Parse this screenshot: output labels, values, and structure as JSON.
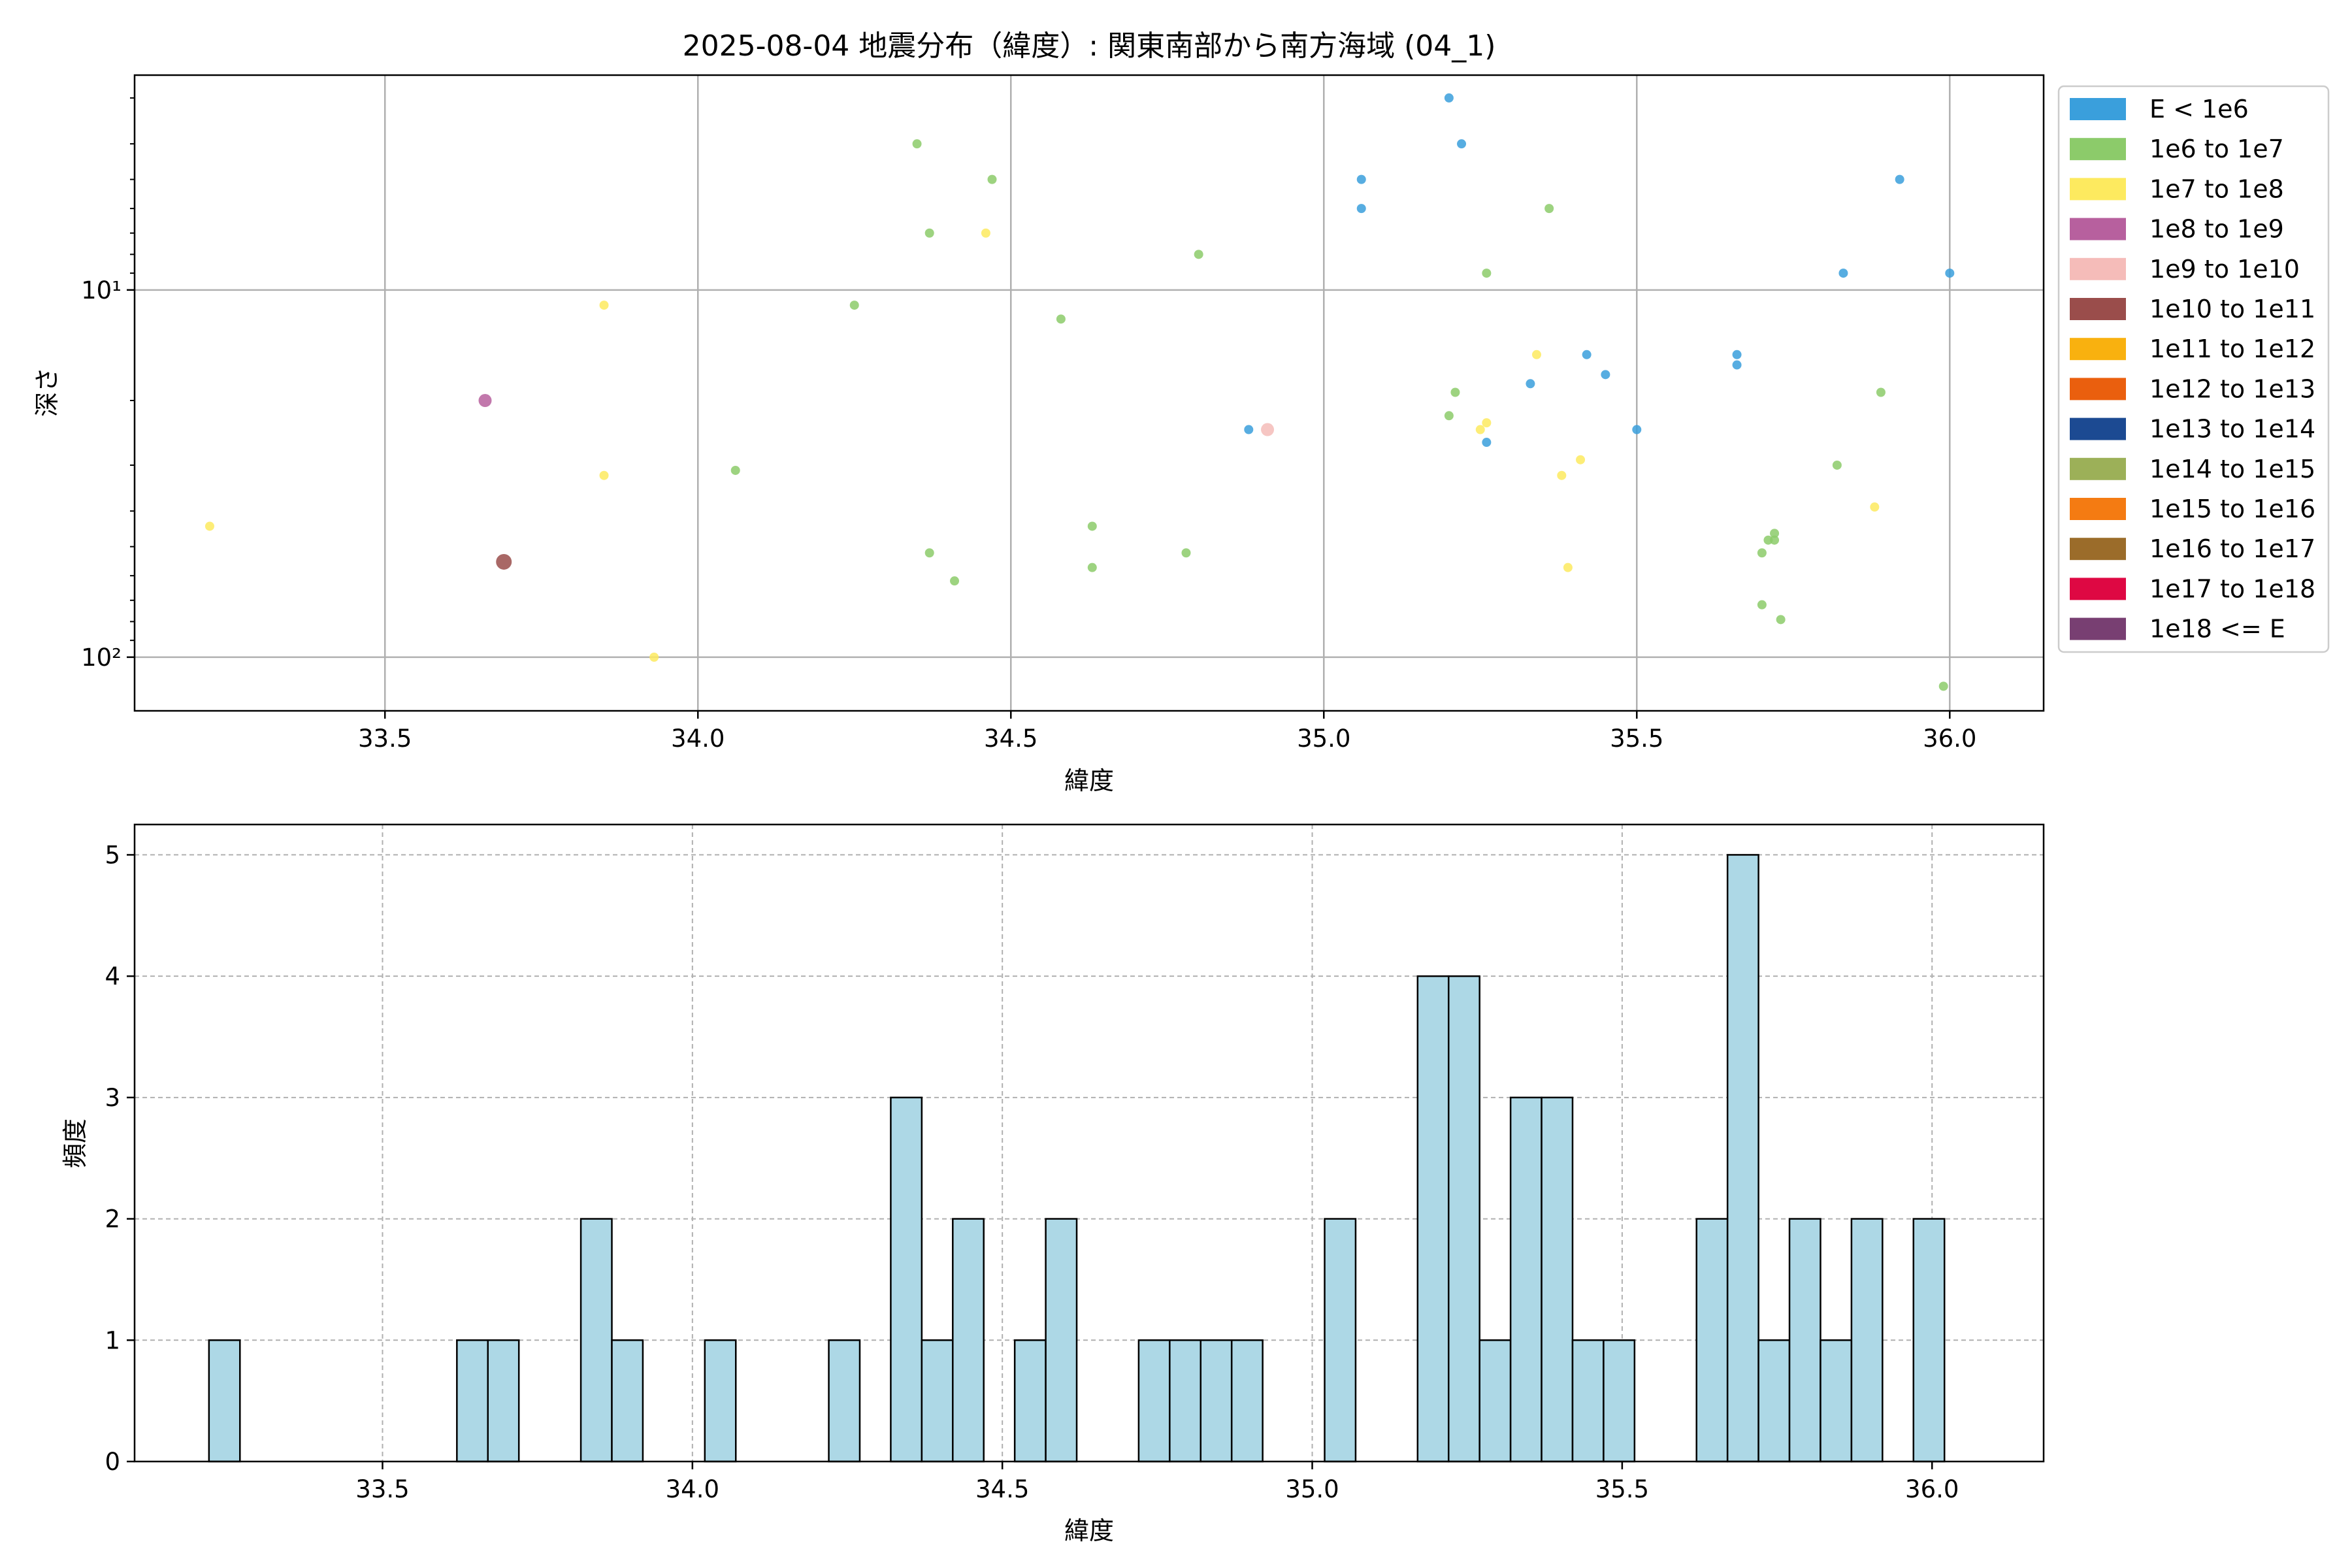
{
  "chart_data": [
    {
      "type": "scatter",
      "title": "2025-08-04 地震分布（緯度）: 関東南部から南方海域 (04_1)",
      "xlabel": "緯度",
      "ylabel": "深さ",
      "xlim": [
        33.1,
        36.15
      ],
      "ylim": [
        140,
        2.6
      ],
      "y_scale": "log",
      "y_inverted": true,
      "x_ticks": [
        33.5,
        34.0,
        34.5,
        35.0,
        35.5,
        36.0
      ],
      "x_tick_labels": [
        "33.5",
        "34.0",
        "34.5",
        "35.0",
        "35.5",
        "36.0"
      ],
      "y_ticks": [
        10,
        100
      ],
      "y_tick_labels": [
        "10¹",
        "10²"
      ],
      "grid": true,
      "legend_position": "outside-right",
      "legend": [
        {
          "label": "E < 1e6",
          "color": "#3a9fdc"
        },
        {
          "label": "1e6 to 1e7",
          "color": "#8ccb6a"
        },
        {
          "label": "1e7 to 1e8",
          "color": "#fdea5f"
        },
        {
          "label": "1e8 to 1e9",
          "color": "#b7609e"
        },
        {
          "label": "1e9 to 1e10",
          "color": "#f5bcb9"
        },
        {
          "label": "1e10 to 1e11",
          "color": "#9a4d4b"
        },
        {
          "label": "1e11 to 1e12",
          "color": "#f9b10f"
        },
        {
          "label": "1e12 to 1e13",
          "color": "#ea5f0e"
        },
        {
          "label": "1e13 to 1e14",
          "color": "#1c4a92"
        },
        {
          "label": "1e14 to 1e15",
          "color": "#9cb058"
        },
        {
          "label": "1e15 to 1e16",
          "color": "#f47b12"
        },
        {
          "label": "1e16 to 1e17",
          "color": "#9b6c2a"
        },
        {
          "label": "1e17 to 1e18",
          "color": "#de0843"
        },
        {
          "label": "1e18 <= E",
          "color": "#783f72"
        }
      ],
      "series": [
        {
          "name": "E < 1e6",
          "color": "#3a9fdc",
          "points": [
            [
              35.2,
              3.0
            ],
            [
              35.22,
              4.0
            ],
            [
              35.06,
              5.0
            ],
            [
              35.06,
              6.0
            ],
            [
              35.92,
              5.0
            ],
            [
              35.83,
              9.0
            ],
            [
              36.0,
              9.0
            ],
            [
              35.42,
              15.0
            ],
            [
              35.45,
              17.0
            ],
            [
              35.33,
              18.0
            ],
            [
              35.66,
              15.0
            ],
            [
              35.66,
              16.0
            ],
            [
              35.5,
              24.0
            ],
            [
              35.26,
              26.0
            ],
            [
              34.88,
              24.0
            ]
          ]
        },
        {
          "name": "1e6 to 1e7",
          "color": "#8ccb6a",
          "points": [
            [
              34.35,
              4.0
            ],
            [
              34.47,
              5.0
            ],
            [
              34.37,
              7.0
            ],
            [
              34.8,
              8.0
            ],
            [
              35.26,
              9.0
            ],
            [
              35.36,
              6.0
            ],
            [
              34.25,
              11.0
            ],
            [
              34.58,
              12.0
            ],
            [
              35.21,
              19.0
            ],
            [
              35.2,
              22.0
            ],
            [
              35.89,
              19.0
            ],
            [
              35.82,
              30.0
            ],
            [
              34.06,
              31.0
            ],
            [
              34.63,
              44.0
            ],
            [
              34.37,
              52.0
            ],
            [
              34.63,
              57.0
            ],
            [
              34.41,
              62.0
            ],
            [
              34.78,
              52.0
            ],
            [
              35.7,
              52.0
            ],
            [
              35.71,
              48.0
            ],
            [
              35.72,
              48.0
            ],
            [
              35.72,
              46.0
            ],
            [
              35.7,
              72.0
            ],
            [
              35.73,
              79.0
            ],
            [
              35.99,
              120.0
            ]
          ]
        },
        {
          "name": "1e7 to 1e8",
          "color": "#fdea5f",
          "points": [
            [
              34.46,
              7.0
            ],
            [
              33.85,
              11.0
            ],
            [
              35.34,
              15.0
            ],
            [
              35.25,
              24.0
            ],
            [
              35.26,
              23.0
            ],
            [
              35.41,
              29.0
            ],
            [
              35.38,
              32.0
            ],
            [
              33.85,
              32.0
            ],
            [
              35.88,
              39.0
            ],
            [
              35.39,
              57.0
            ],
            [
              33.22,
              44.0
            ],
            [
              33.93,
              100.0
            ]
          ]
        },
        {
          "name": "1e8 to 1e9",
          "color": "#b7609e",
          "size": "medium",
          "points": [
            [
              33.66,
              20.0
            ]
          ]
        },
        {
          "name": "1e9 to 1e10",
          "color": "#f5bcb9",
          "size": "medium",
          "points": [
            [
              34.91,
              24.0
            ]
          ]
        },
        {
          "name": "1e10 to 1e11",
          "color": "#9a4d4b",
          "size": "large",
          "points": [
            [
              33.69,
              55.0
            ]
          ]
        }
      ]
    },
    {
      "type": "bar",
      "subtype": "histogram",
      "title": "",
      "xlabel": "緯度",
      "ylabel": "頻度",
      "xlim": [
        33.1,
        36.18
      ],
      "ylim": [
        0,
        5.25
      ],
      "x_ticks": [
        33.5,
        34.0,
        34.5,
        35.0,
        35.5,
        36.0
      ],
      "x_tick_labels": [
        "33.5",
        "34.0",
        "34.5",
        "35.0",
        "35.5",
        "36.0"
      ],
      "y_ticks": [
        0,
        1,
        2,
        3,
        4,
        5
      ],
      "y_tick_labels": [
        "0",
        "1",
        "2",
        "3",
        "4",
        "5"
      ],
      "grid": true,
      "bar_color": "#add8e6",
      "bin_start": 33.22,
      "bin_width": 0.05,
      "counts": [
        1,
        0,
        0,
        0,
        0,
        0,
        0,
        0,
        1,
        1,
        0,
        0,
        2,
        1,
        0,
        0,
        1,
        0,
        0,
        0,
        1,
        0,
        3,
        1,
        2,
        0,
        1,
        2,
        0,
        0,
        1,
        1,
        1,
        1,
        0,
        0,
        2,
        0,
        0,
        4,
        4,
        1,
        3,
        3,
        1,
        1,
        0,
        0,
        2,
        5,
        1,
        2,
        1,
        2,
        0,
        2
      ]
    }
  ]
}
